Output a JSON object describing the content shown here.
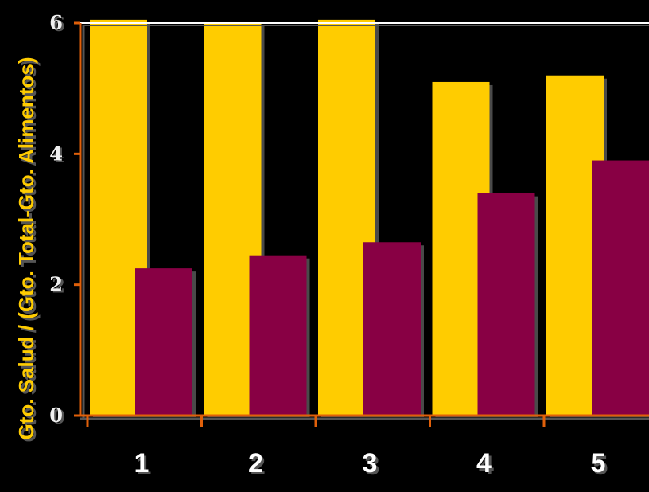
{
  "chart_data": {
    "type": "bar",
    "title": "",
    "xlabel": "",
    "ylabel": "Gto. Salud / (Gto. Total-Gto. Alimentos)",
    "categories": [
      "1",
      "2",
      "3",
      "4",
      "5"
    ],
    "series": [
      {
        "color": "#FFCC00",
        "values": [
          6.05,
          6.0,
          6.05,
          5.1,
          5.2
        ]
      },
      {
        "color": "#880044",
        "values": [
          2.25,
          2.45,
          2.65,
          3.4,
          3.9
        ]
      }
    ],
    "ylim": [
      0,
      6
    ],
    "yticks": [
      "0",
      "2",
      "4",
      "6"
    ],
    "grid": false,
    "legend": "none"
  },
  "colors": {
    "background": "#000000",
    "axis": "#E0600A",
    "tick_label": "#F0F0F0",
    "category_label": "#FFFFFF",
    "axis_title": "#FFCC00",
    "label_shadow": "#555555",
    "top_line": "#FFFFFF"
  }
}
